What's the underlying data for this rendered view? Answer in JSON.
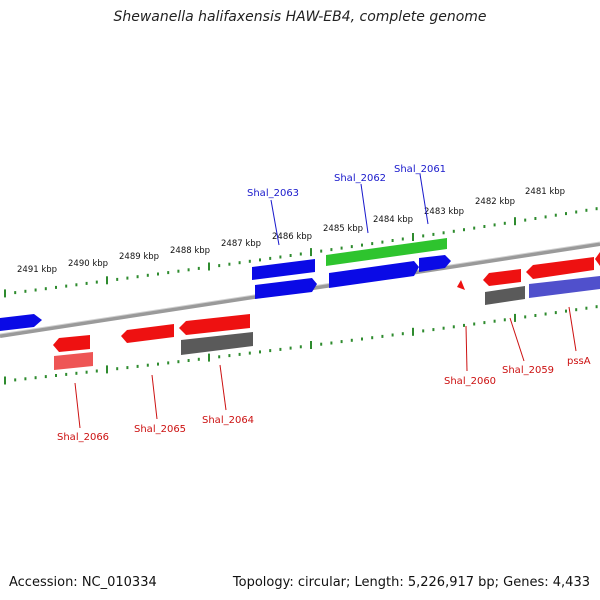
{
  "title": "Shewanella halifaxensis HAW-EB4, complete genome",
  "footer": {
    "accession": "Accession: NC_010334",
    "summary": "Topology: circular; Length: 5,226,917 bp; Genes: 4,433"
  },
  "colors": {
    "backbone": "#8a8a8a",
    "tick": "#2e8b2e",
    "forward_label": "#1a1acc",
    "reverse_label": "#cc1111",
    "feature_blue": "#0a0ae6",
    "feature_green": "#2ec42e",
    "feature_red": "#ee1111",
    "feature_grey": "#5a5a5a",
    "feature_purple": "#5050cc",
    "feature_pink": "#ee5555"
  },
  "scale": {
    "unit": "kbp",
    "labels": [
      "2491 kbp",
      "2490 kbp",
      "2489 kbp",
      "2488 kbp",
      "2487 kbp",
      "2486 kbp",
      "2485 kbp",
      "2484 kbp",
      "2483 kbp",
      "2482 kbp",
      "2481 kbp"
    ]
  },
  "gene_labels": {
    "forward": [
      "Shal_2063",
      "Shal_2062",
      "Shal_2061"
    ],
    "reverse": [
      "Shal_2066",
      "Shal_2065",
      "Shal_2064",
      "Shal_2060",
      "Shal_2059",
      "pssA"
    ]
  }
}
